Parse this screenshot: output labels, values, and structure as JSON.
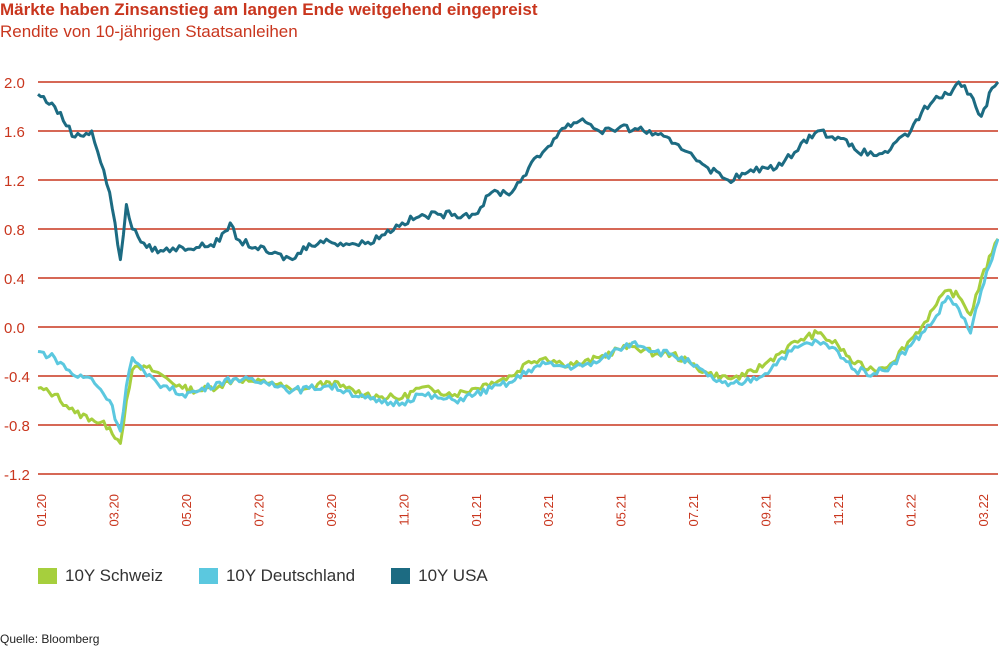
{
  "title": "Märkte haben Zinsanstieg am langen Ende weitgehend eingepreist",
  "subtitle": "Rendite von 10-jährigen Staatsanleihen",
  "source": "Quelle: Bloomberg",
  "colors": {
    "axis": "#c9361e",
    "grid": "#c9361e",
    "schweiz": "#a6cf3d",
    "deutschland": "#5bc8df",
    "usa": "#1c6b82"
  },
  "chart_data": {
    "type": "line",
    "ylim": [
      -1.2,
      2.0
    ],
    "yticks": [
      "2.0",
      "1.6",
      "1.2",
      "0.8",
      "0.4",
      "0.0",
      "-0.4",
      "-0.8",
      "-1.2"
    ],
    "ytick_values": [
      2.0,
      1.6,
      1.2,
      0.8,
      0.4,
      0.0,
      -0.4,
      -0.8,
      -1.2
    ],
    "xticks": [
      "01.20",
      "03.20",
      "05.20",
      "07.20",
      "09.20",
      "11.20",
      "01.21",
      "03.21",
      "05.21",
      "07.21",
      "09.21",
      "11.21",
      "01.22",
      "03.22"
    ],
    "xlim": [
      "2020-01-01",
      "2022-03-15"
    ],
    "grid": true,
    "legend_position": "bottom",
    "series": [
      {
        "name": "10Y Schweiz",
        "color_key": "schweiz",
        "points": [
          [
            "2020-01-01",
            -0.5
          ],
          [
            "2020-01-15",
            -0.55
          ],
          [
            "2020-02-01",
            -0.7
          ],
          [
            "2020-02-15",
            -0.75
          ],
          [
            "2020-03-01",
            -0.82
          ],
          [
            "2020-03-10",
            -0.95
          ],
          [
            "2020-03-15",
            -0.6
          ],
          [
            "2020-03-20",
            -0.35
          ],
          [
            "2020-04-01",
            -0.33
          ],
          [
            "2020-04-15",
            -0.4
          ],
          [
            "2020-05-01",
            -0.5
          ],
          [
            "2020-05-15",
            -0.52
          ],
          [
            "2020-06-01",
            -0.48
          ],
          [
            "2020-06-15",
            -0.42
          ],
          [
            "2020-07-01",
            -0.45
          ],
          [
            "2020-07-15",
            -0.45
          ],
          [
            "2020-08-01",
            -0.52
          ],
          [
            "2020-08-15",
            -0.5
          ],
          [
            "2020-09-01",
            -0.45
          ],
          [
            "2020-09-15",
            -0.5
          ],
          [
            "2020-10-01",
            -0.55
          ],
          [
            "2020-10-15",
            -0.57
          ],
          [
            "2020-11-01",
            -0.58
          ],
          [
            "2020-11-15",
            -0.5
          ],
          [
            "2020-12-01",
            -0.52
          ],
          [
            "2020-12-15",
            -0.55
          ],
          [
            "2021-01-01",
            -0.5
          ],
          [
            "2021-01-15",
            -0.45
          ],
          [
            "2021-02-01",
            -0.4
          ],
          [
            "2021-02-15",
            -0.28
          ],
          [
            "2021-03-01",
            -0.25
          ],
          [
            "2021-03-15",
            -0.3
          ],
          [
            "2021-04-01",
            -0.3
          ],
          [
            "2021-04-15",
            -0.25
          ],
          [
            "2021-05-01",
            -0.18
          ],
          [
            "2021-05-15",
            -0.16
          ],
          [
            "2021-06-01",
            -0.22
          ],
          [
            "2021-06-15",
            -0.22
          ],
          [
            "2021-07-01",
            -0.3
          ],
          [
            "2021-07-15",
            -0.38
          ],
          [
            "2021-08-01",
            -0.42
          ],
          [
            "2021-08-15",
            -0.4
          ],
          [
            "2021-09-01",
            -0.3
          ],
          [
            "2021-09-15",
            -0.2
          ],
          [
            "2021-10-01",
            -0.1
          ],
          [
            "2021-10-15",
            -0.05
          ],
          [
            "2021-11-01",
            -0.15
          ],
          [
            "2021-11-15",
            -0.3
          ],
          [
            "2021-12-01",
            -0.35
          ],
          [
            "2021-12-15",
            -0.3
          ],
          [
            "2022-01-01",
            -0.1
          ],
          [
            "2022-01-10",
            0.0
          ],
          [
            "2022-01-20",
            0.15
          ],
          [
            "2022-02-01",
            0.3
          ],
          [
            "2022-02-10",
            0.25
          ],
          [
            "2022-02-20",
            0.1
          ],
          [
            "2022-03-01",
            0.4
          ],
          [
            "2022-03-10",
            0.6
          ],
          [
            "2022-03-15",
            0.72
          ]
        ]
      },
      {
        "name": "10Y Deutschland",
        "color_key": "deutschland",
        "points": [
          [
            "2020-01-01",
            -0.2
          ],
          [
            "2020-01-15",
            -0.25
          ],
          [
            "2020-02-01",
            -0.4
          ],
          [
            "2020-02-15",
            -0.42
          ],
          [
            "2020-03-01",
            -0.6
          ],
          [
            "2020-03-10",
            -0.85
          ],
          [
            "2020-03-15",
            -0.48
          ],
          [
            "2020-03-20",
            -0.25
          ],
          [
            "2020-04-01",
            -0.4
          ],
          [
            "2020-04-15",
            -0.48
          ],
          [
            "2020-05-01",
            -0.55
          ],
          [
            "2020-05-15",
            -0.52
          ],
          [
            "2020-06-01",
            -0.45
          ],
          [
            "2020-06-15",
            -0.42
          ],
          [
            "2020-07-01",
            -0.45
          ],
          [
            "2020-07-15",
            -0.45
          ],
          [
            "2020-08-01",
            -0.52
          ],
          [
            "2020-08-15",
            -0.5
          ],
          [
            "2020-09-01",
            -0.48
          ],
          [
            "2020-09-15",
            -0.52
          ],
          [
            "2020-10-01",
            -0.58
          ],
          [
            "2020-10-15",
            -0.62
          ],
          [
            "2020-11-01",
            -0.62
          ],
          [
            "2020-11-15",
            -0.55
          ],
          [
            "2020-12-01",
            -0.58
          ],
          [
            "2020-12-15",
            -0.6
          ],
          [
            "2021-01-01",
            -0.55
          ],
          [
            "2021-01-15",
            -0.5
          ],
          [
            "2021-02-01",
            -0.45
          ],
          [
            "2021-02-15",
            -0.35
          ],
          [
            "2021-03-01",
            -0.3
          ],
          [
            "2021-03-15",
            -0.32
          ],
          [
            "2021-04-01",
            -0.32
          ],
          [
            "2021-04-15",
            -0.28
          ],
          [
            "2021-05-01",
            -0.18
          ],
          [
            "2021-05-15",
            -0.12
          ],
          [
            "2021-06-01",
            -0.2
          ],
          [
            "2021-06-15",
            -0.22
          ],
          [
            "2021-07-01",
            -0.3
          ],
          [
            "2021-07-15",
            -0.4
          ],
          [
            "2021-08-01",
            -0.48
          ],
          [
            "2021-08-15",
            -0.45
          ],
          [
            "2021-09-01",
            -0.38
          ],
          [
            "2021-09-15",
            -0.25
          ],
          [
            "2021-10-01",
            -0.15
          ],
          [
            "2021-10-15",
            -0.12
          ],
          [
            "2021-11-01",
            -0.2
          ],
          [
            "2021-11-15",
            -0.35
          ],
          [
            "2021-12-01",
            -0.38
          ],
          [
            "2021-12-15",
            -0.32
          ],
          [
            "2022-01-01",
            -0.15
          ],
          [
            "2022-01-10",
            -0.05
          ],
          [
            "2022-01-20",
            0.05
          ],
          [
            "2022-02-01",
            0.25
          ],
          [
            "2022-02-10",
            0.15
          ],
          [
            "2022-02-20",
            -0.05
          ],
          [
            "2022-03-01",
            0.3
          ],
          [
            "2022-03-10",
            0.55
          ],
          [
            "2022-03-15",
            0.72
          ]
        ]
      },
      {
        "name": "10Y USA",
        "color_key": "usa",
        "points": [
          [
            "2020-01-01",
            1.9
          ],
          [
            "2020-01-15",
            1.8
          ],
          [
            "2020-02-01",
            1.55
          ],
          [
            "2020-02-15",
            1.6
          ],
          [
            "2020-03-01",
            1.1
          ],
          [
            "2020-03-10",
            0.55
          ],
          [
            "2020-03-15",
            1.0
          ],
          [
            "2020-03-20",
            0.8
          ],
          [
            "2020-04-01",
            0.65
          ],
          [
            "2020-04-15",
            0.62
          ],
          [
            "2020-05-01",
            0.65
          ],
          [
            "2020-05-15",
            0.65
          ],
          [
            "2020-06-01",
            0.7
          ],
          [
            "2020-06-10",
            0.85
          ],
          [
            "2020-06-15",
            0.72
          ],
          [
            "2020-07-01",
            0.65
          ],
          [
            "2020-07-15",
            0.6
          ],
          [
            "2020-08-01",
            0.55
          ],
          [
            "2020-08-15",
            0.68
          ],
          [
            "2020-09-01",
            0.7
          ],
          [
            "2020-09-15",
            0.68
          ],
          [
            "2020-10-01",
            0.68
          ],
          [
            "2020-10-15",
            0.75
          ],
          [
            "2020-11-01",
            0.85
          ],
          [
            "2020-11-15",
            0.9
          ],
          [
            "2020-12-01",
            0.92
          ],
          [
            "2020-12-15",
            0.92
          ],
          [
            "2021-01-01",
            0.92
          ],
          [
            "2021-01-15",
            1.1
          ],
          [
            "2021-02-01",
            1.1
          ],
          [
            "2021-02-15",
            1.3
          ],
          [
            "2021-03-01",
            1.45
          ],
          [
            "2021-03-15",
            1.62
          ],
          [
            "2021-04-01",
            1.7
          ],
          [
            "2021-04-15",
            1.6
          ],
          [
            "2021-05-01",
            1.62
          ],
          [
            "2021-05-15",
            1.62
          ],
          [
            "2021-06-01",
            1.58
          ],
          [
            "2021-06-15",
            1.5
          ],
          [
            "2021-07-01",
            1.42
          ],
          [
            "2021-07-15",
            1.3
          ],
          [
            "2021-08-01",
            1.2
          ],
          [
            "2021-08-15",
            1.25
          ],
          [
            "2021-09-01",
            1.3
          ],
          [
            "2021-09-15",
            1.32
          ],
          [
            "2021-10-01",
            1.5
          ],
          [
            "2021-10-15",
            1.6
          ],
          [
            "2021-11-01",
            1.55
          ],
          [
            "2021-11-15",
            1.45
          ],
          [
            "2021-12-01",
            1.4
          ],
          [
            "2021-12-15",
            1.45
          ],
          [
            "2022-01-01",
            1.6
          ],
          [
            "2022-01-10",
            1.75
          ],
          [
            "2022-01-20",
            1.85
          ],
          [
            "2022-02-01",
            1.9
          ],
          [
            "2022-02-10",
            2.0
          ],
          [
            "2022-02-20",
            1.9
          ],
          [
            "2022-03-01",
            1.72
          ],
          [
            "2022-03-10",
            1.95
          ],
          [
            "2022-03-15",
            2.0
          ]
        ]
      }
    ]
  }
}
